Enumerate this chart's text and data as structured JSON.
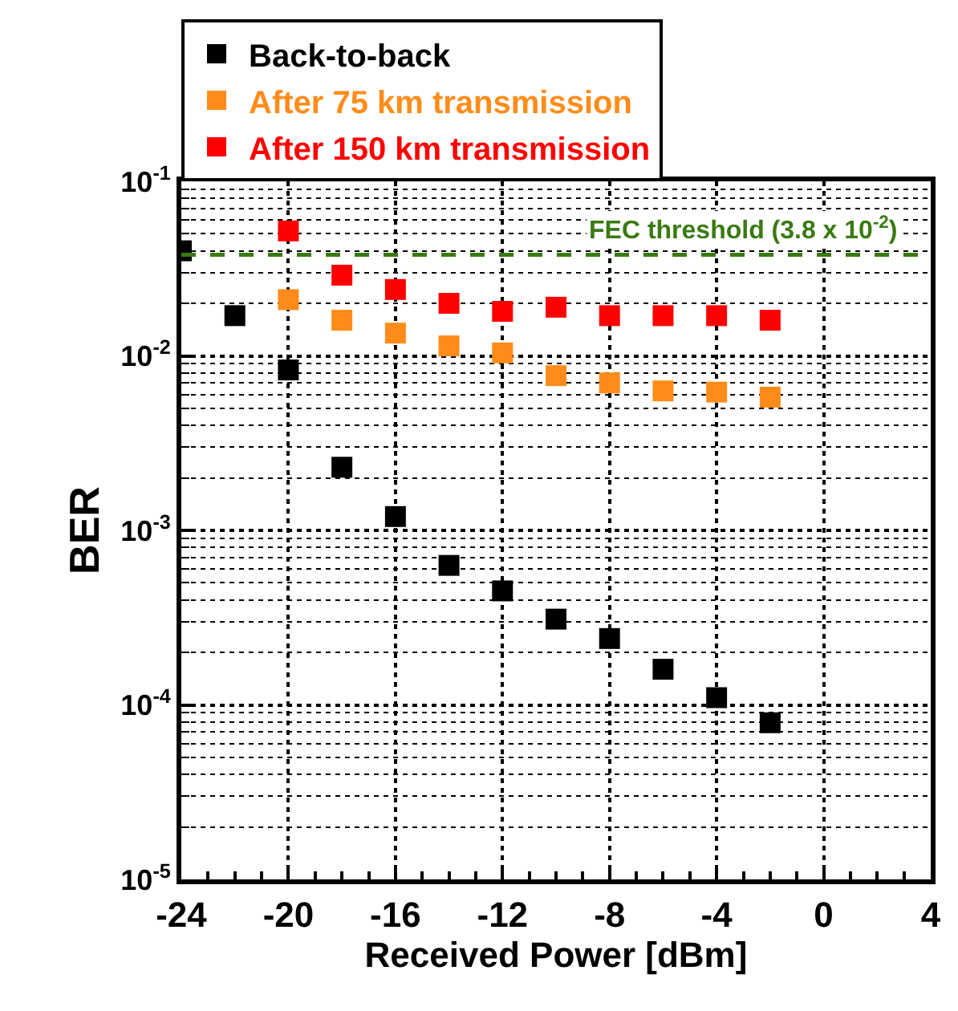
{
  "chart_data": {
    "type": "scatter",
    "xlabel": "Received Power [dBm]",
    "ylabel": "BER",
    "x": [
      -24,
      -22,
      -20,
      -18,
      -16,
      -14,
      -12,
      -10,
      -8,
      -6,
      -4,
      -2
    ],
    "series": [
      {
        "name": "Back-to-back",
        "color": "#000000",
        "values": [
          0.04,
          0.017,
          0.0083,
          0.0023,
          0.0012,
          0.00063,
          0.00045,
          0.00031,
          0.00024,
          0.00016,
          0.00011,
          7.9e-05
        ]
      },
      {
        "name": "After 75 km transmission",
        "color": "#ff8c1a",
        "values": [
          null,
          null,
          0.021,
          0.016,
          0.0135,
          0.0114,
          0.0104,
          0.0077,
          0.007,
          0.0063,
          0.0062,
          0.0058
        ]
      },
      {
        "name": "After 150 km transmission",
        "color": "#ff0000",
        "values": [
          null,
          null,
          0.052,
          0.029,
          0.024,
          0.02,
          0.018,
          0.019,
          0.017,
          0.017,
          0.017,
          0.016
        ]
      }
    ],
    "ref_lines": [
      {
        "axis": "y",
        "value": 0.038,
        "label": "FEC threshold (3.8 x 10$^{-2}$)",
        "color": "#3a7a12",
        "line_style": "dashed"
      }
    ],
    "xlim": [
      -24,
      4
    ],
    "xticks": [
      -24,
      -20,
      -16,
      -12,
      -8,
      -4,
      0,
      4
    ],
    "ylim": [
      1e-05,
      0.1
    ],
    "yticks": [
      {
        "value": 0.1,
        "label": "10$^{-1}$"
      },
      {
        "value": 0.01,
        "label": "10$^{-2}$"
      },
      {
        "value": 0.001,
        "label": "10$^{-3}$"
      },
      {
        "value": 0.0001,
        "label": "10$^{-4}$"
      },
      {
        "value": 1e-05,
        "label": "10$^{-5}$"
      }
    ],
    "log": "y",
    "grid": true,
    "legend": "top left",
    "marker": "square"
  }
}
